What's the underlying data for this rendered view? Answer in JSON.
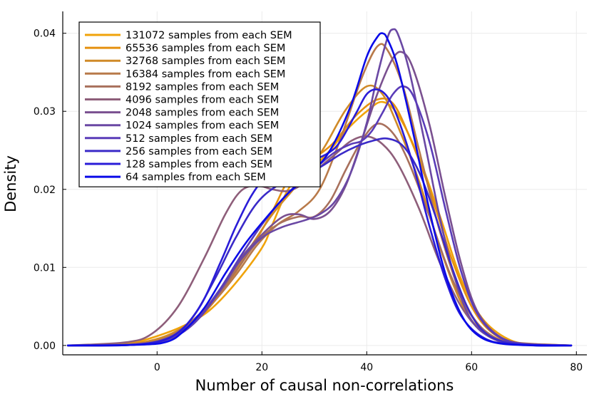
{
  "chart_data": {
    "type": "line",
    "xlabel": "Number of causal non-correlations",
    "ylabel": "Density",
    "xlim": [
      -18,
      82
    ],
    "ylim": [
      -0.0012,
      0.0428
    ],
    "xticks": [
      0,
      20,
      40,
      60,
      80
    ],
    "yticks": [
      0.0,
      0.01,
      0.02,
      0.03,
      0.04
    ],
    "ytick_labels": [
      "0.00",
      "0.01",
      "0.02",
      "0.03",
      "0.04"
    ],
    "grid": true,
    "legend_position": "top-left",
    "series": [
      {
        "name": "131072 samples from each SEM",
        "color": "#f0a30a",
        "points": [
          [
            -17,
            0
          ],
          [
            -10,
            0.0001
          ],
          [
            -5,
            0.0003
          ],
          [
            0,
            0.0012
          ],
          [
            5,
            0.0025
          ],
          [
            10,
            0.0045
          ],
          [
            15,
            0.008
          ],
          [
            20,
            0.0125
          ],
          [
            22,
            0.0155
          ],
          [
            25,
            0.02
          ],
          [
            28,
            0.0222
          ],
          [
            30,
            0.023
          ],
          [
            33,
            0.025
          ],
          [
            36,
            0.0275
          ],
          [
            40,
            0.03
          ],
          [
            43,
            0.0312
          ],
          [
            46,
            0.0295
          ],
          [
            50,
            0.024
          ],
          [
            54,
            0.0165
          ],
          [
            58,
            0.0085
          ],
          [
            62,
            0.0035
          ],
          [
            67,
            0.0008
          ],
          [
            72,
            0.0001
          ],
          [
            79,
            0
          ]
        ]
      },
      {
        "name": "65536 samples from each SEM",
        "color": "#e5900f",
        "points": [
          [
            -17,
            0
          ],
          [
            -8,
            0.0001
          ],
          [
            -2,
            0.0005
          ],
          [
            3,
            0.0015
          ],
          [
            8,
            0.0035
          ],
          [
            13,
            0.0075
          ],
          [
            18,
            0.0125
          ],
          [
            22,
            0.0172
          ],
          [
            25,
            0.0212
          ],
          [
            28,
            0.0235
          ],
          [
            31,
            0.0245
          ],
          [
            34,
            0.0262
          ],
          [
            38,
            0.0295
          ],
          [
            42,
            0.0315
          ],
          [
            45,
            0.031
          ],
          [
            48,
            0.027
          ],
          [
            52,
            0.02
          ],
          [
            56,
            0.0115
          ],
          [
            60,
            0.005
          ],
          [
            64,
            0.0016
          ],
          [
            69,
            0.0003
          ],
          [
            79,
            0
          ]
        ]
      },
      {
        "name": "32768 samples from each SEM",
        "color": "#d08a28",
        "points": [
          [
            -17,
            0
          ],
          [
            -8,
            0.0001
          ],
          [
            -2,
            0.0005
          ],
          [
            3,
            0.0016
          ],
          [
            8,
            0.0038
          ],
          [
            13,
            0.0078
          ],
          [
            18,
            0.0128
          ],
          [
            22,
            0.0168
          ],
          [
            26,
            0.02
          ],
          [
            29,
            0.0225
          ],
          [
            32,
            0.0255
          ],
          [
            36,
            0.0302
          ],
          [
            40,
            0.0332
          ],
          [
            43,
            0.0322
          ],
          [
            46,
            0.028
          ],
          [
            50,
            0.021
          ],
          [
            54,
            0.0125
          ],
          [
            58,
            0.0055
          ],
          [
            62,
            0.0018
          ],
          [
            67,
            0.0004
          ],
          [
            79,
            0
          ]
        ]
      },
      {
        "name": "16384 samples from each SEM",
        "color": "#b87a4a",
        "points": [
          [
            -17,
            0
          ],
          [
            -7,
            0.0001
          ],
          [
            0,
            0.0006
          ],
          [
            5,
            0.0022
          ],
          [
            10,
            0.005
          ],
          [
            15,
            0.009
          ],
          [
            19,
            0.0128
          ],
          [
            23,
            0.0155
          ],
          [
            27,
            0.0172
          ],
          [
            31,
            0.02
          ],
          [
            35,
            0.0265
          ],
          [
            39,
            0.0342
          ],
          [
            42,
            0.0383
          ],
          [
            44,
            0.0378
          ],
          [
            47,
            0.033
          ],
          [
            50,
            0.025
          ],
          [
            54,
            0.0145
          ],
          [
            58,
            0.0065
          ],
          [
            62,
            0.0022
          ],
          [
            67,
            0.0005
          ],
          [
            79,
            0
          ]
        ]
      },
      {
        "name": "8192 samples from each SEM",
        "color": "#a8705c",
        "points": [
          [
            -17,
            0
          ],
          [
            -6,
            0.0001
          ],
          [
            1,
            0.0008
          ],
          [
            6,
            0.0028
          ],
          [
            11,
            0.006
          ],
          [
            15,
            0.0095
          ],
          [
            19,
            0.0132
          ],
          [
            23,
            0.0155
          ],
          [
            27,
            0.0165
          ],
          [
            30,
            0.0165
          ],
          [
            33,
            0.0185
          ],
          [
            36,
            0.0225
          ],
          [
            39,
            0.0262
          ],
          [
            42,
            0.0284
          ],
          [
            45,
            0.0272
          ],
          [
            48,
            0.0235
          ],
          [
            52,
            0.0165
          ],
          [
            56,
            0.009
          ],
          [
            60,
            0.0038
          ],
          [
            64,
            0.0012
          ],
          [
            69,
            0.0002
          ],
          [
            79,
            0
          ]
        ]
      },
      {
        "name": "4096 samples from each SEM",
        "color": "#8e5e7a",
        "points": [
          [
            -17,
            0
          ],
          [
            -6,
            0.0004
          ],
          [
            -1,
            0.0015
          ],
          [
            4,
            0.005
          ],
          [
            9,
            0.0112
          ],
          [
            13,
            0.0168
          ],
          [
            16,
            0.0198
          ],
          [
            19,
            0.0205
          ],
          [
            22,
            0.02
          ],
          [
            25,
            0.0198
          ],
          [
            28,
            0.0208
          ],
          [
            31,
            0.0228
          ],
          [
            34,
            0.0245
          ],
          [
            37,
            0.0262
          ],
          [
            40,
            0.0268
          ],
          [
            43,
            0.0258
          ],
          [
            46,
            0.0232
          ],
          [
            50,
            0.0175
          ],
          [
            54,
            0.0105
          ],
          [
            58,
            0.005
          ],
          [
            62,
            0.0018
          ],
          [
            67,
            0.0004
          ],
          [
            79,
            0
          ]
        ]
      },
      {
        "name": "2048 samples from each SEM",
        "color": "#7a5090",
        "points": [
          [
            -17,
            0
          ],
          [
            -5,
            0.0001
          ],
          [
            2,
            0.0008
          ],
          [
            7,
            0.003
          ],
          [
            12,
            0.0072
          ],
          [
            16,
            0.0112
          ],
          [
            20,
            0.0142
          ],
          [
            24,
            0.0165
          ],
          [
            27,
            0.0168
          ],
          [
            30,
            0.0162
          ],
          [
            33,
            0.0172
          ],
          [
            36,
            0.0205
          ],
          [
            39,
            0.0262
          ],
          [
            42,
            0.0322
          ],
          [
            45,
            0.0368
          ],
          [
            47,
            0.0375
          ],
          [
            49,
            0.0352
          ],
          [
            52,
            0.0282
          ],
          [
            55,
            0.019
          ],
          [
            58,
            0.0105
          ],
          [
            61,
            0.0045
          ],
          [
            65,
            0.0013
          ],
          [
            70,
            0.0002
          ],
          [
            79,
            0
          ]
        ]
      },
      {
        "name": "1024 samples from each SEM",
        "color": "#6a48a4",
        "points": [
          [
            -17,
            0
          ],
          [
            -5,
            0.0001
          ],
          [
            2,
            0.0008
          ],
          [
            7,
            0.0028
          ],
          [
            12,
            0.007
          ],
          [
            16,
            0.011
          ],
          [
            20,
            0.0138
          ],
          [
            24,
            0.0152
          ],
          [
            28,
            0.016
          ],
          [
            31,
            0.0168
          ],
          [
            34,
            0.0185
          ],
          [
            37,
            0.0222
          ],
          [
            40,
            0.0285
          ],
          [
            42,
            0.0345
          ],
          [
            44,
            0.0395
          ],
          [
            45,
            0.0405
          ],
          [
            46,
            0.0398
          ],
          [
            48,
            0.0355
          ],
          [
            51,
            0.0262
          ],
          [
            54,
            0.0162
          ],
          [
            57,
            0.0082
          ],
          [
            60,
            0.0032
          ],
          [
            64,
            0.0009
          ],
          [
            69,
            0.0001
          ],
          [
            79,
            0
          ]
        ]
      },
      {
        "name": "512 samples from each SEM",
        "color": "#5a3cb8",
        "points": [
          [
            -17,
            0
          ],
          [
            -4,
            0.0001
          ],
          [
            3,
            0.001
          ],
          [
            8,
            0.0035
          ],
          [
            12,
            0.0072
          ],
          [
            16,
            0.0115
          ],
          [
            20,
            0.0155
          ],
          [
            24,
            0.0188
          ],
          [
            28,
            0.0215
          ],
          [
            31,
            0.0232
          ],
          [
            34,
            0.0248
          ],
          [
            37,
            0.0258
          ],
          [
            39,
            0.0262
          ],
          [
            41,
            0.0275
          ],
          [
            43,
            0.0298
          ],
          [
            45,
            0.0322
          ],
          [
            47,
            0.0332
          ],
          [
            49,
            0.0318
          ],
          [
            52,
            0.026
          ],
          [
            55,
            0.0175
          ],
          [
            58,
            0.0095
          ],
          [
            61,
            0.0042
          ],
          [
            65,
            0.0012
          ],
          [
            70,
            0.0002
          ],
          [
            79,
            0
          ]
        ]
      },
      {
        "name": "256 samples from each SEM",
        "color": "#3a2ac8",
        "points": [
          [
            -17,
            0
          ],
          [
            -4,
            0.0001
          ],
          [
            3,
            0.0012
          ],
          [
            7,
            0.0038
          ],
          [
            11,
            0.0085
          ],
          [
            15,
            0.0138
          ],
          [
            19,
            0.0182
          ],
          [
            23,
            0.0205
          ],
          [
            27,
            0.0215
          ],
          [
            31,
            0.0228
          ],
          [
            35,
            0.0245
          ],
          [
            38,
            0.0255
          ],
          [
            41,
            0.0262
          ],
          [
            44,
            0.0265
          ],
          [
            47,
            0.0255
          ],
          [
            50,
            0.0222
          ],
          [
            53,
            0.0168
          ],
          [
            56,
            0.0105
          ],
          [
            59,
            0.0052
          ],
          [
            62,
            0.002
          ],
          [
            66,
            0.0005
          ],
          [
            72,
            0
          ],
          [
            79,
            0
          ]
        ]
      },
      {
        "name": "128 samples from each SEM",
        "color": "#2a1cd8",
        "points": [
          [
            -17,
            0
          ],
          [
            -4,
            0.0001
          ],
          [
            3,
            0.0012
          ],
          [
            8,
            0.0048
          ],
          [
            12,
            0.0105
          ],
          [
            15,
            0.0152
          ],
          [
            18,
            0.0192
          ],
          [
            21,
            0.0218
          ],
          [
            24,
            0.0228
          ],
          [
            27,
            0.0232
          ],
          [
            30,
            0.0238
          ],
          [
            33,
            0.0248
          ],
          [
            35,
            0.0262
          ],
          [
            38,
            0.0298
          ],
          [
            40,
            0.0322
          ],
          [
            42,
            0.0328
          ],
          [
            44,
            0.0318
          ],
          [
            46,
            0.029
          ],
          [
            49,
            0.0228
          ],
          [
            52,
            0.0152
          ],
          [
            55,
            0.0085
          ],
          [
            58,
            0.0038
          ],
          [
            62,
            0.0011
          ],
          [
            67,
            0.0002
          ],
          [
            79,
            0
          ]
        ]
      },
      {
        "name": "64 samples from each SEM",
        "color": "#0a0ae8",
        "points": [
          [
            -17,
            0
          ],
          [
            -3,
            0.0001
          ],
          [
            2,
            0.0005
          ],
          [
            5,
            0.0018
          ],
          [
            9,
            0.0048
          ],
          [
            13,
            0.0092
          ],
          [
            17,
            0.0132
          ],
          [
            21,
            0.0165
          ],
          [
            25,
            0.0195
          ],
          [
            29,
            0.0218
          ],
          [
            33,
            0.025
          ],
          [
            37,
            0.0308
          ],
          [
            40,
            0.037
          ],
          [
            42,
            0.0395
          ],
          [
            43,
            0.04
          ],
          [
            44,
            0.0392
          ],
          [
            46,
            0.0355
          ],
          [
            49,
            0.0268
          ],
          [
            52,
            0.0172
          ],
          [
            55,
            0.0092
          ],
          [
            58,
            0.004
          ],
          [
            61,
            0.0014
          ],
          [
            65,
            0.0003
          ],
          [
            72,
            0
          ],
          [
            79,
            0
          ]
        ]
      }
    ]
  }
}
